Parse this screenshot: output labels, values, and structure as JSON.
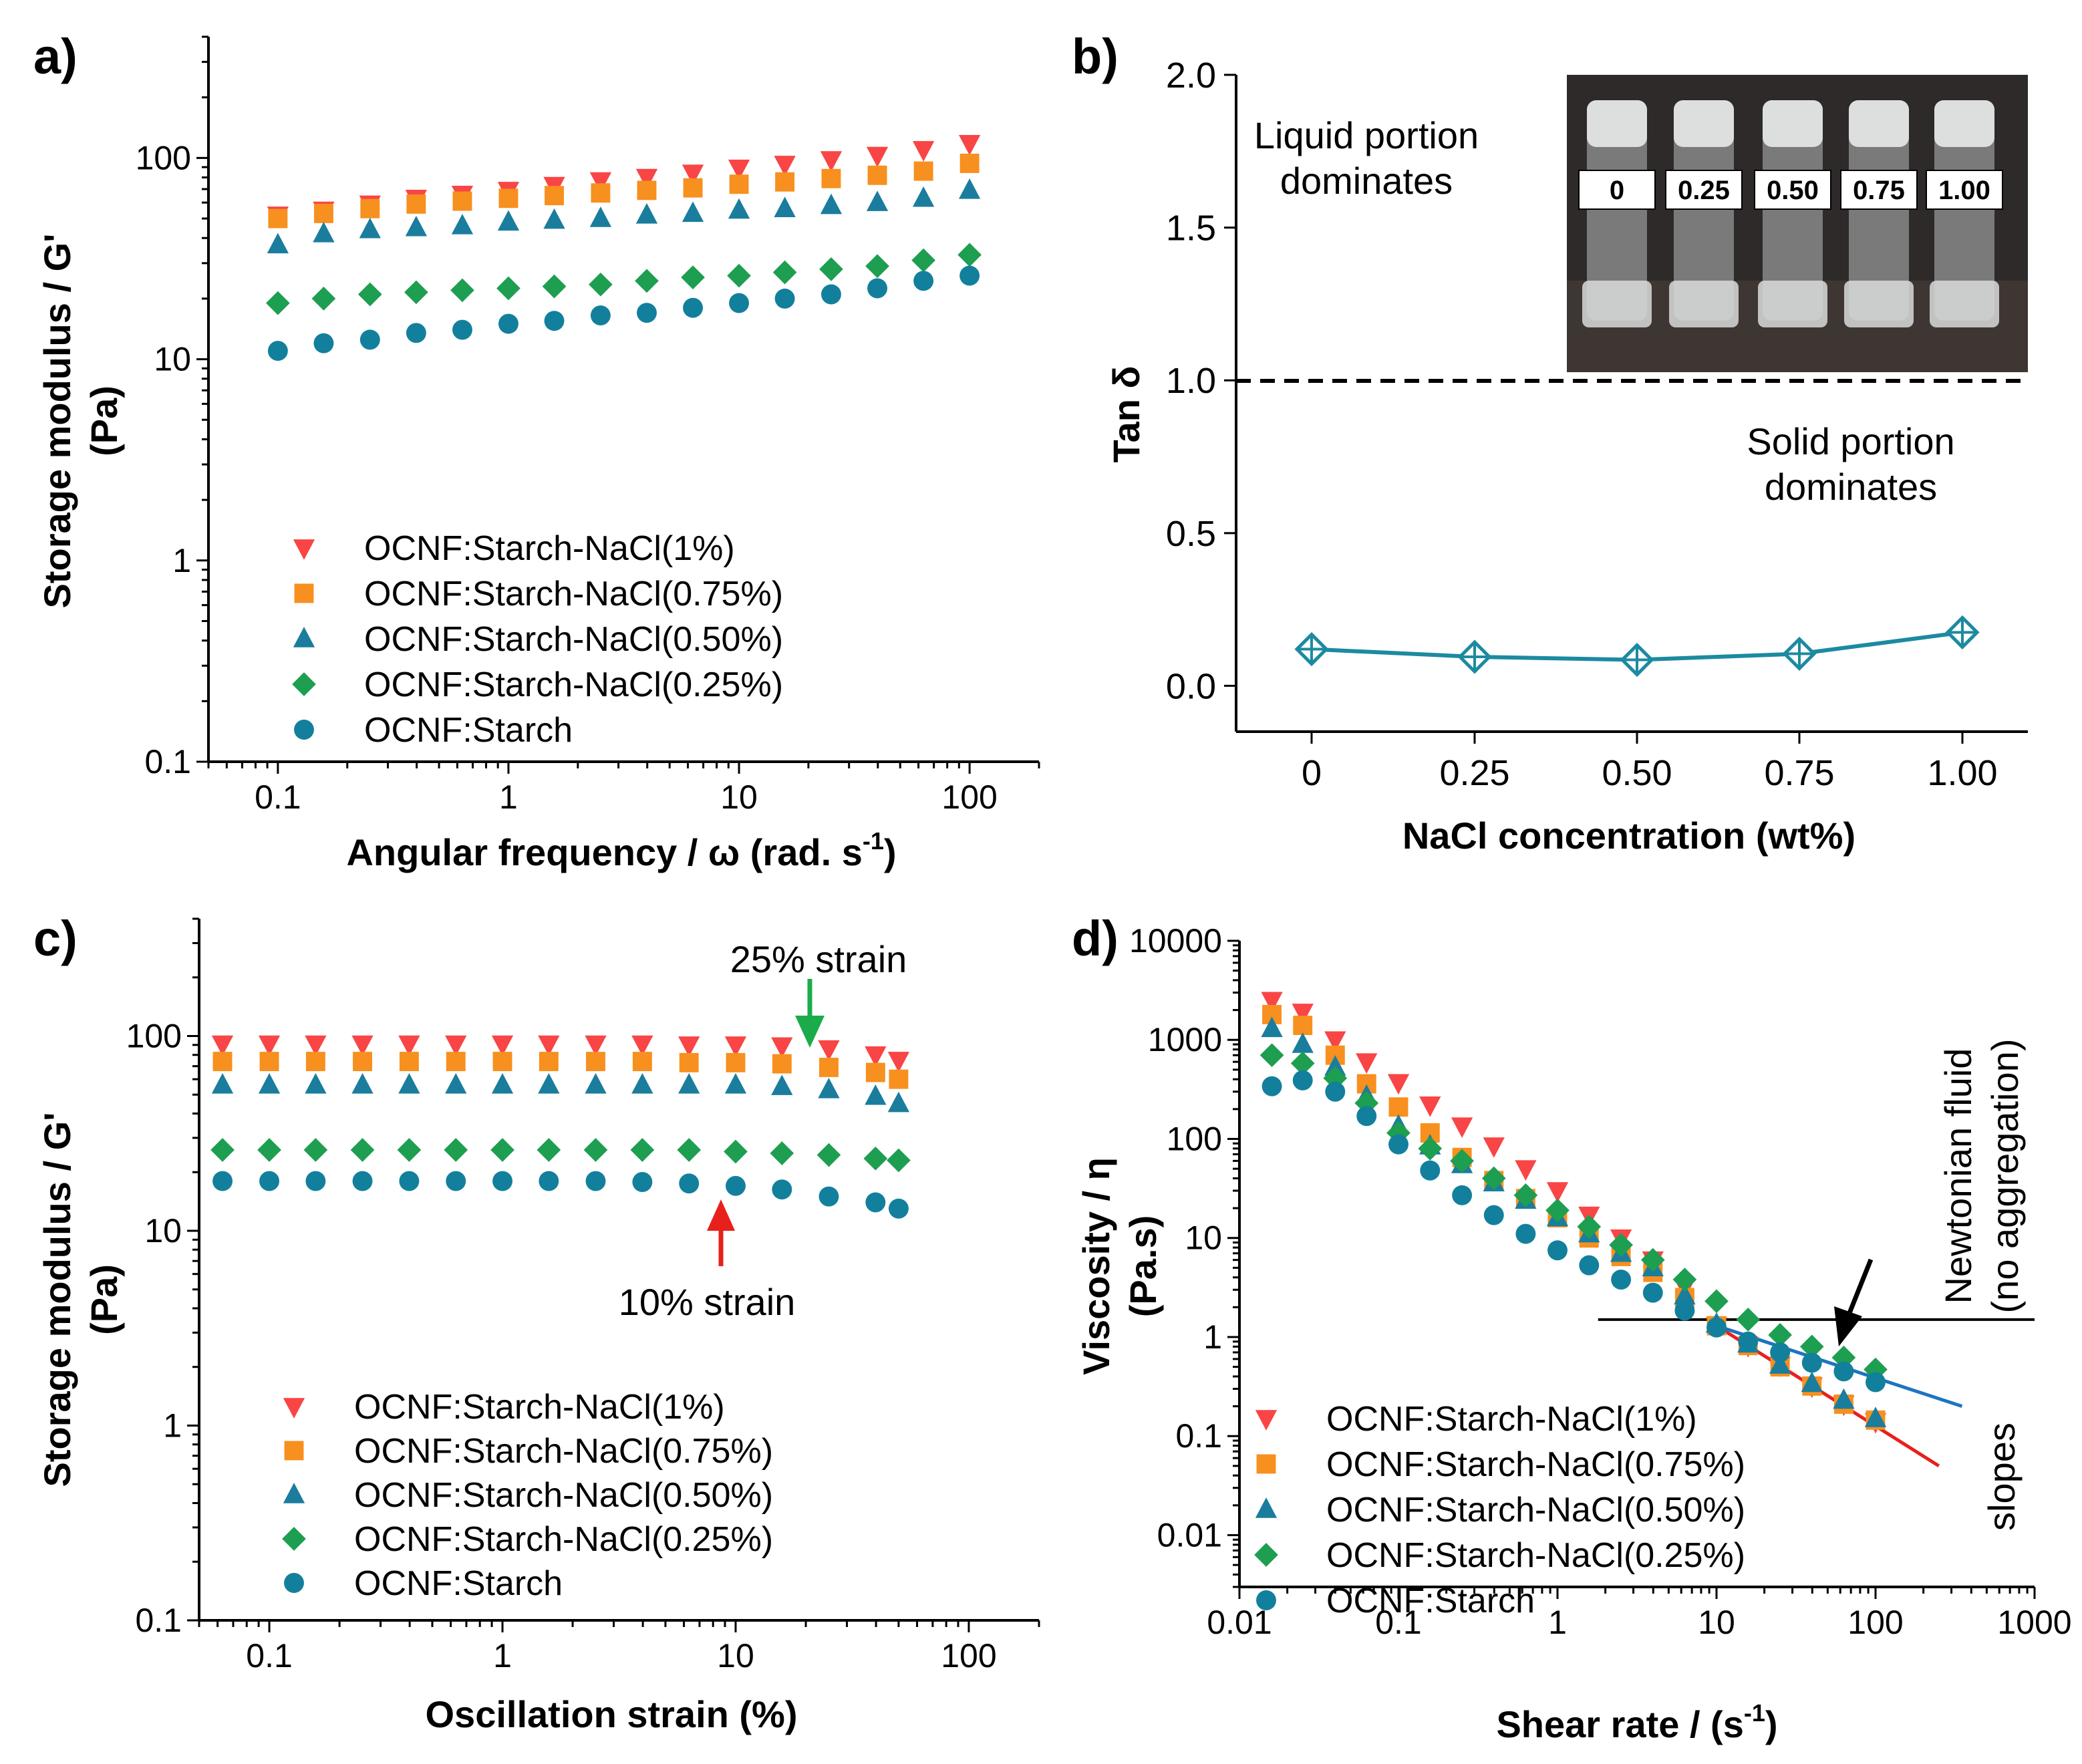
{
  "colors": {
    "nacl1": "#f94545",
    "nacl075": "#f7901e",
    "nacl050": "#1a7d9d",
    "nacl025": "#1e9e50",
    "starch": "#12809c",
    "tan": "#1c8aa0",
    "red_line": "#e8201c",
    "blue_line": "#1e74c0",
    "green_arrow": "#1aac4a",
    "red_arrow": "#e8201c"
  },
  "panels": {
    "a": "a)",
    "b": "b)",
    "c": "c)",
    "d": "d)"
  },
  "chart_data": [
    {
      "id": "a",
      "type": "scatter",
      "xlabel": "Angular frequency / ω (rad. s",
      "xlabel_sup": "-1",
      "xlabel_end": ")",
      "ylabel1": "Storage modulus / G'",
      "ylabel2": "(Pa)",
      "xscale": "log",
      "yscale": "log",
      "xlim": [
        0.05,
        200
      ],
      "ylim": [
        0.1,
        400
      ],
      "xticks": [
        0.1,
        1,
        10,
        100
      ],
      "xtick_labels": [
        "0.1",
        "1",
        "10",
        "100"
      ],
      "yticks": [
        0.1,
        1,
        10,
        100
      ],
      "ytick_labels": [
        "0.1",
        "1",
        "10",
        "100"
      ],
      "x": [
        0.1,
        0.158,
        0.251,
        0.398,
        0.631,
        1,
        1.58,
        2.51,
        3.98,
        6.31,
        10,
        15.8,
        25.1,
        39.8,
        63.1,
        100
      ],
      "series": [
        {
          "name": "OCNF:Starch-NaCl(1%)",
          "marker": "tri-down",
          "color": "#f94545",
          "values": [
            52,
            55,
            59,
            63,
            66,
            69,
            73,
            77,
            80,
            84,
            89,
            93,
            98,
            103,
            110,
            118
          ]
        },
        {
          "name": "OCNF:Starch-NaCl(0.75%)",
          "marker": "square",
          "color": "#f7901e",
          "values": [
            50,
            53,
            56,
            59,
            61,
            63,
            65,
            67,
            69,
            71,
            74,
            76,
            79,
            82,
            86,
            94
          ]
        },
        {
          "name": "OCNF:Starch-NaCl(0.50%)",
          "marker": "tri-up",
          "color": "#1a7d9d",
          "values": [
            37,
            42,
            44,
            45,
            46,
            48,
            49,
            50,
            52,
            53,
            55,
            56,
            58,
            60,
            63,
            69
          ]
        },
        {
          "name": "OCNF:Starch-NaCl(0.25%)",
          "marker": "diamond",
          "color": "#1e9e50",
          "values": [
            19,
            20,
            21,
            21.5,
            22,
            22.5,
            23,
            23.5,
            24.5,
            25.5,
            26,
            27,
            28,
            29,
            31,
            33
          ]
        },
        {
          "name": "OCNF:Starch",
          "marker": "circle",
          "color": "#12809c",
          "values": [
            11,
            12,
            12.5,
            13.5,
            14,
            15,
            15.5,
            16.5,
            17,
            18,
            19,
            20,
            21,
            22.5,
            24.5,
            26
          ]
        }
      ],
      "legend": "bottom-left"
    },
    {
      "id": "b",
      "type": "line",
      "xlabel": "NaCl concentration (wt%)",
      "ylabel": "Tan δ",
      "ylim": [
        -0.15,
        2.0
      ],
      "categories": [
        "0",
        "0.25",
        "0.50",
        "0.75",
        "1.00"
      ],
      "yticks": [
        0.0,
        0.5,
        1.0,
        1.5,
        2.0
      ],
      "ytick_labels": [
        "0.0",
        "0.5",
        "1.0",
        "1.5",
        "2.0"
      ],
      "series": [
        {
          "name": "Tan δ",
          "color": "#1c8aa0",
          "values": [
            0.12,
            0.095,
            0.085,
            0.105,
            0.175
          ]
        }
      ],
      "reference_line": 1.0,
      "annotations": {
        "liquid_1": "Liquid portion",
        "liquid_2": "dominates",
        "solid_1": "Solid portion",
        "solid_2": "dominates"
      },
      "inset_labels": [
        "0",
        "0.25",
        "0.50",
        "0.75",
        "1.00"
      ]
    },
    {
      "id": "c",
      "type": "scatter",
      "xlabel": "Oscillation strain (%)",
      "ylabel1": "Storage modulus / G'",
      "ylabel2": "(Pa)",
      "xscale": "log",
      "yscale": "log",
      "xlim": [
        0.05,
        200
      ],
      "ylim": [
        0.1,
        400
      ],
      "xticks": [
        0.1,
        1,
        10,
        100
      ],
      "xtick_labels": [
        "0.1",
        "1",
        "10",
        "100"
      ],
      "yticks": [
        0.1,
        1,
        10,
        100
      ],
      "ytick_labels": [
        "0.1",
        "1",
        "10",
        "100"
      ],
      "x": [
        0.063,
        0.1,
        0.158,
        0.251,
        0.398,
        0.631,
        1,
        1.58,
        2.51,
        3.98,
        6.31,
        10,
        15.8,
        25.1,
        39.8,
        50
      ],
      "series": [
        {
          "name": "OCNF:Starch-NaCl(1%)",
          "marker": "tri-down",
          "color": "#f94545",
          "values": [
            91,
            91,
            91,
            91,
            91,
            91,
            91,
            91,
            91,
            91,
            90,
            90,
            89,
            86,
            80,
            75
          ]
        },
        {
          "name": "OCNF:Starch-NaCl(0.75%)",
          "marker": "square",
          "color": "#f7901e",
          "values": [
            74,
            74,
            74,
            74,
            74,
            74,
            74,
            74,
            74,
            74,
            73,
            73,
            72,
            69,
            65,
            60
          ]
        },
        {
          "name": "OCNF:Starch-NaCl(0.50%)",
          "marker": "tri-up",
          "color": "#1a7d9d",
          "values": [
            56,
            56,
            56,
            56,
            56,
            56,
            56,
            56,
            56,
            56,
            56,
            56,
            55,
            53,
            49,
            45
          ]
        },
        {
          "name": "OCNF:Starch-NaCl(0.25%)",
          "marker": "diamond",
          "color": "#1e9e50",
          "values": [
            26,
            26,
            26,
            26,
            26,
            26,
            26,
            26,
            26,
            26,
            26,
            25.5,
            25,
            24.5,
            23.5,
            23
          ]
        },
        {
          "name": "OCNF:Starch",
          "marker": "circle",
          "color": "#12809c",
          "values": [
            18,
            18,
            18,
            18,
            18,
            18,
            18,
            18,
            18,
            17.8,
            17.5,
            17,
            16.3,
            15,
            14,
            13
          ]
        }
      ],
      "annotations": {
        "green": "25% strain",
        "red": "10% strain"
      },
      "legend": "bottom-left"
    },
    {
      "id": "d",
      "type": "scatter",
      "xlabel": "Shear rate / (s",
      "xlabel_sup": "-1",
      "xlabel_end": ")",
      "ylabel1": "Viscosity / η",
      "ylabel2": "(Pa.s)",
      "xscale": "log",
      "yscale": "log",
      "xlim": [
        0.01,
        1000
      ],
      "ylim": [
        0.003,
        10000
      ],
      "xticks": [
        0.01,
        0.1,
        1,
        10,
        100,
        1000
      ],
      "xtick_labels": [
        "0.01",
        "0.1",
        "1",
        "10",
        "100",
        "1000"
      ],
      "yticks": [
        0.01,
        0.1,
        1,
        10,
        100,
        1000,
        10000
      ],
      "ytick_labels": [
        "0.01",
        "0.1",
        "1",
        "10",
        "100",
        "1000",
        "10000"
      ],
      "x": [
        0.016,
        0.025,
        0.04,
        0.063,
        0.1,
        0.158,
        0.251,
        0.398,
        0.631,
        1,
        1.58,
        2.51,
        3.98,
        6.31,
        10,
        15.8,
        25.1,
        39.8,
        63.1,
        100
      ],
      "series": [
        {
          "name": "OCNF:Starch-NaCl(1%)",
          "marker": "tri-down",
          "color": "#f94545",
          "values": [
            2500,
            1900,
            1000,
            600,
            370,
            220,
            135,
            85,
            50,
            30,
            17,
            10,
            6,
            3.2,
            1.3,
            0.82,
            0.52,
            0.32,
            0.21,
            0.14
          ]
        },
        {
          "name": "OCNF:Starch-NaCl(0.75%)",
          "marker": "square",
          "color": "#f7901e",
          "values": [
            1800,
            1400,
            700,
            360,
            210,
            115,
            65,
            38,
            25,
            16,
            10,
            6.5,
            4.5,
            2.5,
            1.3,
            0.82,
            0.5,
            0.32,
            0.21,
            0.145
          ]
        },
        {
          "name": "OCNF:Starch-NaCl(0.50%)",
          "marker": "tri-up",
          "color": "#1a7d9d",
          "values": [
            1300,
            900,
            530,
            270,
            135,
            85,
            55,
            36,
            24,
            16,
            11,
            7,
            5,
            2.6,
            1.35,
            0.85,
            0.52,
            0.34,
            0.23,
            0.15
          ]
        },
        {
          "name": "OCNF:Starch-NaCl(0.25%)",
          "marker": "diamond",
          "color": "#1e9e50",
          "values": [
            700,
            580,
            410,
            230,
            115,
            80,
            60,
            40,
            27,
            19,
            13,
            8.5,
            6,
            3.8,
            2.3,
            1.5,
            1.05,
            0.8,
            0.62,
            0.47
          ]
        },
        {
          "name": "OCNF:Starch",
          "marker": "circle",
          "color": "#12809c",
          "values": [
            340,
            390,
            300,
            170,
            88,
            48,
            27,
            17,
            11,
            7.5,
            5.3,
            3.8,
            2.8,
            1.85,
            1.25,
            0.9,
            0.7,
            0.55,
            0.45,
            0.35
          ]
        }
      ],
      "annotations": {
        "newtonian_1": "Newtonian fluid",
        "newtonian_2": "(no aggregation)",
        "slopes": "slopes"
      },
      "reference_line": 1.5,
      "legend": "bottom-left"
    }
  ]
}
